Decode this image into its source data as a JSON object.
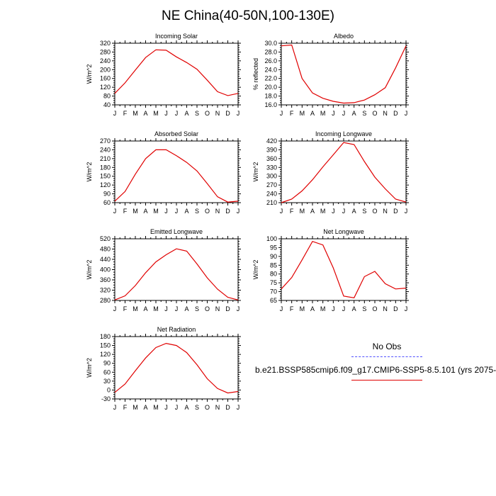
{
  "page": {
    "title": "NE China(40-50N,100-130E)"
  },
  "legend": {
    "obs_label": "No Obs",
    "model_label": "b.e21.BSSP585cmip6.f09_g17.CMIP6-SSP5-8.5.101 (yrs 2075-",
    "obs_color": "#5050ff",
    "model_color": "#e00000"
  },
  "chart_data": [
    {
      "type": "line",
      "title": "Incoming Solar",
      "ylabel": "W/m^2",
      "x": [
        "J",
        "F",
        "M",
        "A",
        "M",
        "J",
        "J",
        "A",
        "S",
        "O",
        "N",
        "D",
        "J"
      ],
      "ylim": [
        40,
        320
      ],
      "yticks": [
        40,
        80,
        120,
        160,
        200,
        240,
        280,
        320
      ],
      "series": [
        {
          "values": [
            92,
            140,
            198,
            255,
            290,
            288,
            258,
            232,
            202,
            152,
            100,
            82,
            92
          ],
          "color": "#e00000"
        }
      ]
    },
    {
      "type": "line",
      "title": "Albedo",
      "ylabel": "% reflected",
      "x": [
        "J",
        "F",
        "M",
        "A",
        "M",
        "J",
        "J",
        "A",
        "S",
        "O",
        "N",
        "D",
        "J"
      ],
      "ylim": [
        16,
        30
      ],
      "yticks": [
        "16.0",
        "18.0",
        "20.0",
        "22.0",
        "24.0",
        "26.0",
        "28.0",
        "30.0"
      ],
      "series": [
        {
          "values": [
            29.4,
            29.6,
            22.0,
            18.7,
            17.5,
            16.8,
            16.4,
            16.5,
            17.1,
            18.3,
            19.9,
            24.4,
            29.4
          ],
          "color": "#e00000"
        }
      ]
    },
    {
      "type": "line",
      "title": "Absorbed Solar",
      "ylabel": "W/m^2",
      "x": [
        "J",
        "F",
        "M",
        "A",
        "M",
        "J",
        "J",
        "A",
        "S",
        "O",
        "N",
        "D",
        "J"
      ],
      "ylim": [
        60,
        270
      ],
      "yticks": [
        60,
        90,
        120,
        150,
        180,
        210,
        240,
        270
      ],
      "series": [
        {
          "values": [
            65,
            98,
            157,
            210,
            240,
            240,
            220,
            197,
            168,
            125,
            80,
            62,
            65
          ],
          "color": "#e00000"
        }
      ]
    },
    {
      "type": "line",
      "title": "Incoming Longwave",
      "ylabel": "W/m^2",
      "x": [
        "J",
        "F",
        "M",
        "A",
        "M",
        "J",
        "J",
        "A",
        "S",
        "O",
        "N",
        "D",
        "J"
      ],
      "ylim": [
        210,
        420
      ],
      "yticks": [
        210,
        240,
        270,
        300,
        330,
        360,
        390,
        420
      ],
      "series": [
        {
          "values": [
            210,
            222,
            250,
            288,
            332,
            373,
            415,
            408,
            350,
            297,
            257,
            222,
            212
          ],
          "color": "#e00000"
        }
      ]
    },
    {
      "type": "line",
      "title": "Emitted Longwave",
      "ylabel": "W/m^2",
      "x": [
        "J",
        "F",
        "M",
        "A",
        "M",
        "J",
        "J",
        "A",
        "S",
        "O",
        "N",
        "D",
        "J"
      ],
      "ylim": [
        280,
        520
      ],
      "yticks": [
        280,
        320,
        360,
        400,
        440,
        480,
        520
      ],
      "series": [
        {
          "values": [
            282,
            298,
            338,
            388,
            430,
            458,
            481,
            472,
            422,
            368,
            324,
            292,
            282
          ],
          "color": "#e00000"
        }
      ]
    },
    {
      "type": "line",
      "title": "Net Longwave",
      "ylabel": "W/m^2",
      "x": [
        "J",
        "F",
        "M",
        "A",
        "M",
        "J",
        "J",
        "A",
        "S",
        "O",
        "N",
        "D",
        "J"
      ],
      "ylim": [
        65,
        100
      ],
      "yticks": [
        65,
        70,
        75,
        80,
        85,
        90,
        95,
        100
      ],
      "series": [
        {
          "values": [
            71.5,
            78,
            88,
            98.5,
            96.5,
            83.5,
            67.5,
            66.5,
            78.5,
            81.5,
            74.5,
            71.5,
            72
          ],
          "color": "#e00000"
        }
      ]
    },
    {
      "type": "line",
      "title": "Net Radiation",
      "ylabel": "W/m^2",
      "x": [
        "J",
        "F",
        "M",
        "A",
        "M",
        "J",
        "J",
        "A",
        "S",
        "O",
        "N",
        "D",
        "J"
      ],
      "ylim": [
        -30,
        180
      ],
      "yticks": [
        -30,
        0,
        30,
        60,
        90,
        120,
        150,
        180
      ],
      "series": [
        {
          "values": [
            -8,
            20,
            65,
            108,
            143,
            157,
            150,
            126,
            85,
            38,
            5,
            -10,
            -5
          ],
          "color": "#e00000"
        }
      ]
    }
  ]
}
